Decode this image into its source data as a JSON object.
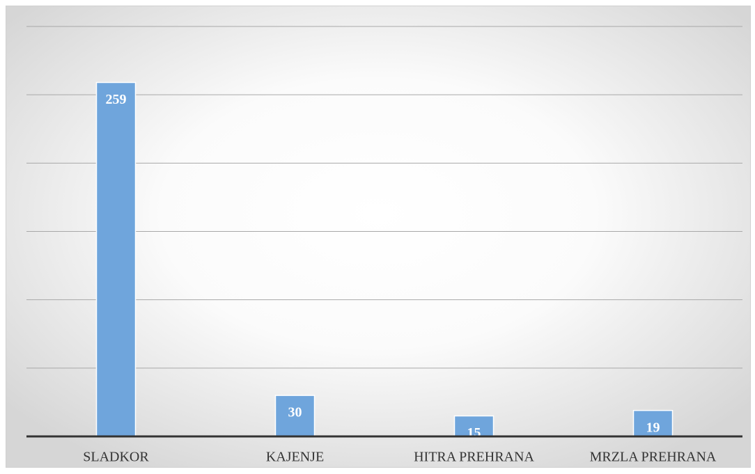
{
  "chart_data": {
    "type": "bar",
    "categories": [
      "SLADKOR",
      "KAJENJE",
      "HITRA PREHRANA",
      "MRZLA PREHRANA"
    ],
    "values": [
      259,
      30,
      15,
      19
    ],
    "color": "#6fa5dc",
    "ylim": [
      0,
      300
    ],
    "yticks": [
      0,
      50,
      100,
      150,
      200,
      250,
      300
    ],
    "grid": true
  }
}
